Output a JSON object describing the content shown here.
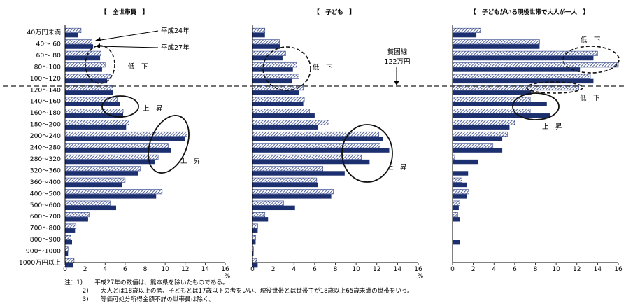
{
  "chart_data": [
    {
      "type": "bar",
      "title": "【　全世帯員　】",
      "categories": [
        "40万円未満",
        "40～ 60",
        "60～ 80",
        "80～100",
        "100～120",
        "120～140",
        "140～160",
        "160～180",
        "180～200",
        "200～240",
        "240～280",
        "280～320",
        "320～360",
        "360～400",
        "400～500",
        "500～600",
        "600～700",
        "700～800",
        "800～900",
        "900～1000",
        "1000万円以上"
      ],
      "series": [
        {
          "name": "平成24年",
          "values": [
            1.6,
            2.7,
            3.6,
            4.0,
            4.6,
            4.8,
            5.2,
            5.8,
            6.4,
            12.2,
            10.3,
            9.3,
            7.5,
            6.0,
            9.7,
            4.5,
            2.4,
            1.1,
            0.6,
            0.3,
            0.9
          ]
        },
        {
          "name": "平成27年",
          "values": [
            1.3,
            2.8,
            3.5,
            3.7,
            4.2,
            4.8,
            5.5,
            5.8,
            6.1,
            12.0,
            10.6,
            9.0,
            7.3,
            5.7,
            9.1,
            5.1,
            2.3,
            1.0,
            0.7,
            0.3,
            0.8
          ]
        }
      ],
      "xlim": [
        0,
        16
      ],
      "xticks": [
        "0",
        "2",
        "4",
        "6",
        "8",
        "10",
        "12",
        "14",
        "16"
      ],
      "xunit": "%"
    },
    {
      "type": "bar",
      "title": "【　子ども　】",
      "series": [
        {
          "name": "平成24年",
          "values": [
            1.2,
            2.6,
            3.2,
            4.3,
            4.5,
            4.9,
            5.0,
            5.5,
            7.4,
            12.2,
            12.3,
            10.5,
            6.8,
            6.2,
            7.8,
            3.0,
            1.2,
            0.5,
            0.3,
            0.1,
            0.4
          ]
        },
        {
          "name": "平成27年",
          "values": [
            1.2,
            2.7,
            2.9,
            3.9,
            3.8,
            4.5,
            4.9,
            6.0,
            6.3,
            12.6,
            13.2,
            11.3,
            8.9,
            6.3,
            7.6,
            4.1,
            1.5,
            0.5,
            0.3,
            0.1,
            0.5
          ]
        }
      ],
      "xlim": [
        0,
        16
      ],
      "xticks": [
        "0",
        "2",
        "4",
        "6",
        "8",
        "10",
        "12",
        "14",
        "16"
      ],
      "xunit": "%"
    },
    {
      "type": "bar",
      "title": "【　子どもがいる現役世帯で大人が一人　】",
      "series": [
        {
          "name": "平成24年",
          "values": [
            2.7,
            8.4,
            14.0,
            16.0,
            13.3,
            12.2,
            7.5,
            7.5,
            6.0,
            5.3,
            3.9,
            0.2,
            0.0,
            0.9,
            1.6,
            0.7,
            0.5,
            0.0,
            0.0,
            0.0,
            0.0
          ]
        },
        {
          "name": "平成27年",
          "values": [
            2.3,
            8.4,
            13.6,
            12.3,
            13.6,
            7.6,
            9.1,
            9.4,
            5.5,
            4.8,
            4.8,
            2.5,
            1.5,
            1.4,
            1.4,
            0.6,
            0.7,
            0.0,
            0.7,
            0.0,
            0.0
          ]
        }
      ],
      "xlim": [
        0,
        16
      ],
      "xticks": [
        "0",
        "2",
        "4",
        "6",
        "8",
        "10",
        "12",
        "14",
        "16"
      ],
      "xunit": "%"
    }
  ],
  "annotations": {
    "legend_h24": "平成24年",
    "legend_h27": "平成27年",
    "poverty_line_1": "貧困線",
    "poverty_line_2": "122万円",
    "fall": "低　下",
    "rise": "上　昇",
    "fall_b": "低　下",
    "rise_b": "上　昇"
  },
  "notes": [
    "注：1)　　平成27年の数値は、熊本県を除いたものである。",
    "　　　2)　　大人とは18歳以上の者、子どもとは17歳以下の者をいい、現役世帯とは世帯主が18歳以上65歳未満の世帯をいう。",
    "　　　3)　　等価可処分所得金額不詳の世帯員は除く。"
  ],
  "colors": {
    "h27": "#1c2f6e",
    "h24_stripe": "#2b3f86",
    "h24_bg": "#ffffff"
  }
}
